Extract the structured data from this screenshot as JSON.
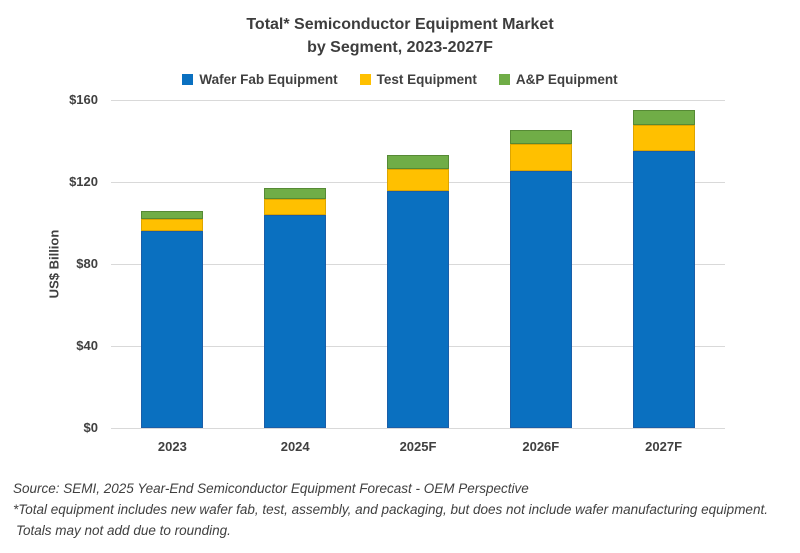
{
  "title": {
    "line1": "Total* Semiconductor Equipment Market",
    "line2": "by Segment, 2023-2027F"
  },
  "chart_data": {
    "type": "bar",
    "stacked": true,
    "title": "Total* Semiconductor Equipment Market by Segment, 2023-2027F",
    "categories": [
      "2023",
      "2024",
      "2025F",
      "2026F",
      "2027F"
    ],
    "series": [
      {
        "name": "Wafer Fab Equipment",
        "color": "#0A70C0",
        "border": "#1A5EA8",
        "values": [
          96,
          104,
          115.5,
          125.5,
          135
        ]
      },
      {
        "name": "Test Equipment",
        "color": "#FFC000",
        "border": "#DDA500",
        "values": [
          6,
          7.5,
          11,
          13,
          13
        ]
      },
      {
        "name": "A&P Equipment",
        "color": "#70AD47",
        "border": "#568A35",
        "values": [
          4,
          5.5,
          6.5,
          7,
          7
        ]
      }
    ],
    "totals": [
      106,
      117,
      133,
      145.5,
      155
    ],
    "xlabel": "",
    "ylabel": "US$ Billion",
    "ylim": [
      0,
      160
    ],
    "ytick_labels": [
      "$0",
      "$40",
      "$80",
      "$120",
      "$160"
    ],
    "ytick_values": [
      0,
      40,
      80,
      120,
      160
    ],
    "grid": true,
    "legend_position": "top"
  },
  "footer": {
    "source": "Source: SEMI, 2025 Year-End Semiconductor Equipment Forecast - OEM Perspective",
    "note1": "*Total equipment includes new wafer fab, test, assembly, and packaging, but does not include wafer manufacturing equipment.",
    "note2": "Totals may not add due to rounding."
  },
  "colors": {
    "grid": "#D9D9D9",
    "axis": "#D9D9D9",
    "text": "#404040",
    "background": "#FFFFFF"
  }
}
